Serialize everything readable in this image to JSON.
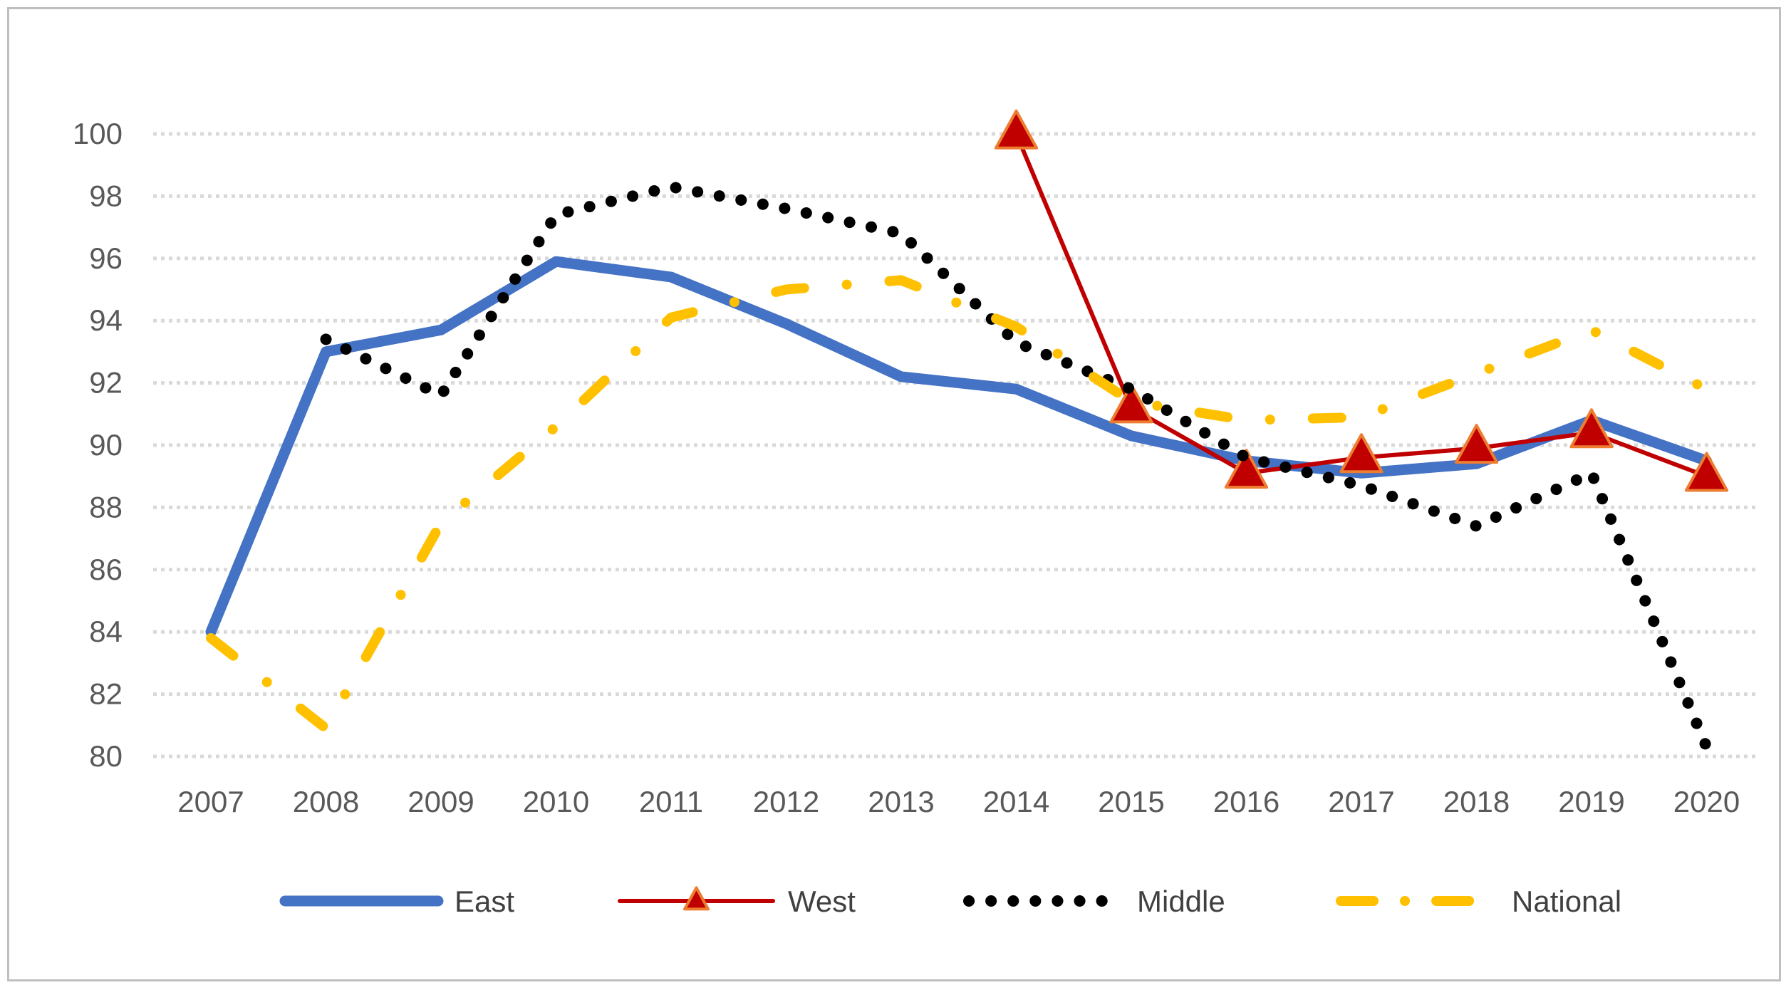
{
  "chart_data": {
    "type": "line",
    "title": "",
    "xlabel": "",
    "ylabel": "",
    "categories": [
      "2007",
      "2008",
      "2009",
      "2010",
      "2011",
      "2012",
      "2013",
      "2014",
      "2015",
      "2016",
      "2017",
      "2018",
      "2019",
      "2020"
    ],
    "ylim": [
      80,
      100
    ],
    "yticks": [
      80,
      82,
      84,
      86,
      88,
      90,
      92,
      94,
      96,
      98,
      100
    ],
    "grid": true,
    "legend_position": "bottom",
    "series": [
      {
        "name": "East",
        "color": "#4472c4",
        "style": "thick-solid",
        "values": [
          84.0,
          93.0,
          93.7,
          95.9,
          95.4,
          93.9,
          92.2,
          91.8,
          90.3,
          89.5,
          89.1,
          89.4,
          90.8,
          89.5
        ]
      },
      {
        "name": "West",
        "color": "#c00000",
        "style": "thin-solid-triangle",
        "values": [
          null,
          null,
          null,
          null,
          null,
          null,
          null,
          100.0,
          91.2,
          89.1,
          89.6,
          89.9,
          90.4,
          89.0
        ]
      },
      {
        "name": "Middle",
        "color": "#000000",
        "style": "dotted",
        "values": [
          null,
          93.4,
          91.6,
          97.4,
          98.3,
          97.6,
          96.8,
          93.3,
          91.8,
          89.6,
          88.7,
          87.4,
          89.1,
          80.3
        ]
      },
      {
        "name": "National",
        "color": "#ffc000",
        "style": "long-dash-dot",
        "values": [
          83.8,
          80.9,
          87.5,
          90.6,
          94.1,
          95.0,
          95.3,
          93.8,
          91.4,
          90.8,
          90.9,
          92.3,
          93.7,
          91.8
        ]
      }
    ]
  }
}
